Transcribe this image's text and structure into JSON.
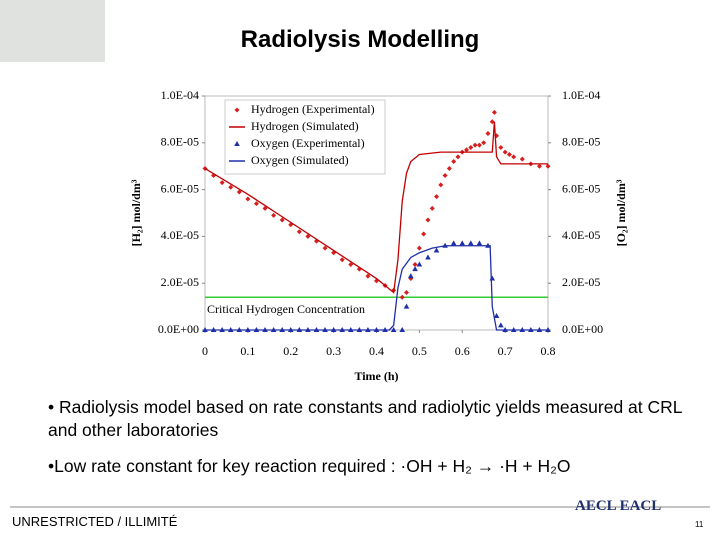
{
  "slide": {
    "title": "Radiolysis Modelling",
    "bullets": [
      "• Radiolysis model based on rate constants and radiolytic yields measured at CRL and other laboratories",
      "•Low rate constant for key reaction required : ·OH + H₂ → ·H + H₂O"
    ],
    "footer": "UNRESTRICTED / ILLIMITÉ",
    "page_number": "11",
    "logo": "AECL EACL"
  },
  "chart_data": {
    "type": "line",
    "x_label": "Time (h)",
    "y_label": "[H₂] mol/dm³",
    "y2_label": "[O₂] mol/dm³",
    "xlim": [
      0,
      0.8
    ],
    "xticks": [
      0,
      0.1,
      0.2,
      0.3,
      0.4,
      0.5,
      0.6,
      0.7,
      0.8
    ],
    "ylim": [
      0,
      0.0001
    ],
    "yticks": [
      {
        "value": 0,
        "label": "0.0E+00"
      },
      {
        "value": 2e-05,
        "label": "2.0E-05"
      },
      {
        "value": 4e-05,
        "label": "4.0E-05"
      },
      {
        "value": 6e-05,
        "label": "6.0E-05"
      },
      {
        "value": 8e-05,
        "label": "8.0E-05"
      },
      {
        "value": 0.0001,
        "label": "1.0E-04"
      }
    ],
    "y2lim": [
      0,
      0.0001
    ],
    "y2ticks": [
      {
        "value": 0,
        "label": "0.0E+00"
      },
      {
        "value": 2e-05,
        "label": "2.0E-05"
      },
      {
        "value": 4e-05,
        "label": "4.0E-05"
      },
      {
        "value": 6e-05,
        "label": "6.0E-05"
      },
      {
        "value": 8e-05,
        "label": "8.0E-05"
      },
      {
        "value": 0.0001,
        "label": "1.0E-04"
      }
    ],
    "legend": "upper left",
    "threshold": {
      "value": 1.4e-05,
      "label": "Critical Hydrogen Concentration",
      "color": "#33cc33"
    },
    "series": [
      {
        "name": "Hydrogen (Experimental)",
        "color": "#d62020",
        "marker": "diamond",
        "x": [
          0,
          0.02,
          0.04,
          0.06,
          0.08,
          0.1,
          0.12,
          0.14,
          0.16,
          0.18,
          0.2,
          0.22,
          0.24,
          0.26,
          0.28,
          0.3,
          0.32,
          0.34,
          0.36,
          0.38,
          0.4,
          0.42,
          0.44,
          0.46,
          0.47,
          0.48,
          0.49,
          0.5,
          0.51,
          0.52,
          0.53,
          0.54,
          0.55,
          0.56,
          0.57,
          0.58,
          0.59,
          0.6,
          0.61,
          0.62,
          0.63,
          0.64,
          0.65,
          0.66,
          0.67,
          0.675,
          0.68,
          0.69,
          0.7,
          0.71,
          0.72,
          0.74,
          0.76,
          0.78,
          0.8
        ],
        "values": [
          6.9e-05,
          6.6e-05,
          6.3e-05,
          6.1e-05,
          5.9e-05,
          5.6e-05,
          5.4e-05,
          5.2e-05,
          4.9e-05,
          4.7e-05,
          4.5e-05,
          4.2e-05,
          4e-05,
          3.8e-05,
          3.5e-05,
          3.3e-05,
          3e-05,
          2.8e-05,
          2.6e-05,
          2.3e-05,
          2.1e-05,
          1.9e-05,
          1.7e-05,
          1.4e-05,
          1.6e-05,
          2.2e-05,
          2.8e-05,
          3.5e-05,
          4.1e-05,
          4.7e-05,
          5.2e-05,
          5.7e-05,
          6.2e-05,
          6.6e-05,
          6.9e-05,
          7.2e-05,
          7.4e-05,
          7.6e-05,
          7.7e-05,
          7.8e-05,
          7.9e-05,
          7.9e-05,
          8e-05,
          8.4e-05,
          8.9e-05,
          9.3e-05,
          8.3e-05,
          7.8e-05,
          7.6e-05,
          7.5e-05,
          7.4e-05,
          7.3e-05,
          7.1e-05,
          7e-05,
          7e-05
        ]
      },
      {
        "name": "Hydrogen (Simulated)",
        "color": "#c00000",
        "marker": "none",
        "x": [
          0,
          0.1,
          0.2,
          0.3,
          0.4,
          0.44,
          0.45,
          0.46,
          0.47,
          0.48,
          0.5,
          0.55,
          0.6,
          0.67,
          0.675,
          0.68,
          0.69,
          0.7,
          0.8
        ],
        "values": [
          6.9e-05,
          5.8e-05,
          4.6e-05,
          3.4e-05,
          2.2e-05,
          1.6e-05,
          3e-05,
          5.5e-05,
          6.7e-05,
          7.2e-05,
          7.5e-05,
          7.6e-05,
          7.6e-05,
          7.6e-05,
          8.9e-05,
          7.4e-05,
          7.1e-05,
          7.1e-05,
          7.1e-05
        ]
      },
      {
        "name": "Oxygen (Experimental)",
        "color": "#1f2fa8",
        "marker": "triangle",
        "axis": "y2",
        "x": [
          0,
          0.02,
          0.04,
          0.06,
          0.08,
          0.1,
          0.12,
          0.14,
          0.16,
          0.18,
          0.2,
          0.22,
          0.24,
          0.26,
          0.28,
          0.3,
          0.32,
          0.34,
          0.36,
          0.38,
          0.4,
          0.42,
          0.44,
          0.46,
          0.47,
          0.48,
          0.49,
          0.5,
          0.52,
          0.54,
          0.56,
          0.58,
          0.6,
          0.62,
          0.64,
          0.66,
          0.67,
          0.68,
          0.69,
          0.7,
          0.72,
          0.74,
          0.76,
          0.78,
          0.8
        ],
        "values": [
          0,
          0,
          0,
          0,
          0,
          0,
          0,
          0,
          0,
          0,
          0,
          0,
          0,
          0,
          0,
          0,
          0,
          0,
          0,
          0,
          0,
          0,
          0,
          0,
          1e-05,
          2.3e-05,
          2.6e-05,
          2.8e-05,
          3.1e-05,
          3.4e-05,
          3.6e-05,
          3.7e-05,
          3.7e-05,
          3.7e-05,
          3.7e-05,
          3.6e-05,
          2.2e-05,
          6e-06,
          2e-06,
          0,
          0,
          0,
          0,
          0,
          0
        ]
      },
      {
        "name": "Oxygen (Simulated)",
        "color": "#1f2fa8",
        "marker": "none",
        "axis": "y2",
        "x": [
          0,
          0.43,
          0.44,
          0.45,
          0.46,
          0.48,
          0.5,
          0.53,
          0.56,
          0.6,
          0.665,
          0.67,
          0.68,
          0.8
        ],
        "values": [
          0,
          0,
          2e-06,
          1.8e-05,
          2.6e-05,
          3.1e-05,
          3.3e-05,
          3.5e-05,
          3.6e-05,
          3.6e-05,
          3.6e-05,
          1e-05,
          0,
          0
        ]
      }
    ]
  }
}
